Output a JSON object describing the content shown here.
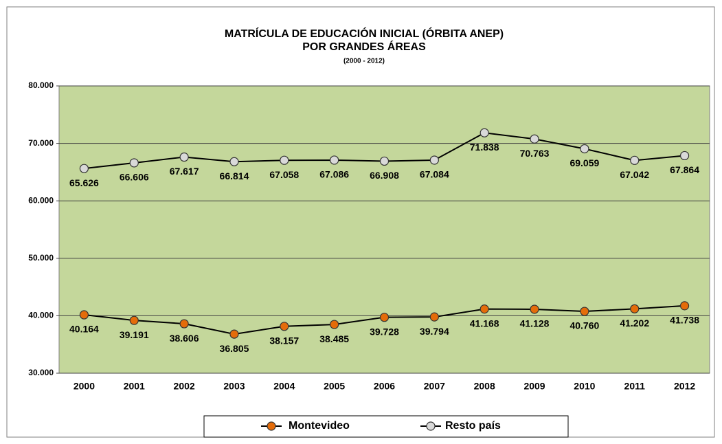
{
  "chart_data": {
    "type": "line",
    "title": [
      "MATRÍCULA DE EDUCACIÓN INICIAL (ÓRBITA ANEP)",
      "POR GRANDES ÁREAS"
    ],
    "subtitle": "(2000 - 2012)",
    "categories": [
      "2000",
      "2001",
      "2002",
      "2003",
      "2004",
      "2005",
      "2006",
      "2007",
      "2008",
      "2009",
      "2010",
      "2011",
      "2012"
    ],
    "series": [
      {
        "name": "Montevideo",
        "color": "#e46c0a",
        "values": [
          40164,
          39191,
          38606,
          36805,
          38157,
          38485,
          39728,
          39794,
          41168,
          41128,
          40760,
          41202,
          41738
        ],
        "value_labels": [
          "40.164",
          "39.191",
          "38.606",
          "36.805",
          "38.157",
          "38.485",
          "39.728",
          "39.794",
          "41.168",
          "41.128",
          "40.760",
          "41.202",
          "41.738"
        ]
      },
      {
        "name": "Resto país",
        "color": "#d9d9d9",
        "values": [
          65626,
          66606,
          67617,
          66814,
          67058,
          67086,
          66908,
          67084,
          71838,
          70763,
          69059,
          67042,
          67864
        ],
        "value_labels": [
          "65.626",
          "66.606",
          "67.617",
          "66.814",
          "67.058",
          "67.086",
          "66.908",
          "67.084",
          "71.838",
          "70.763",
          "69.059",
          "67.042",
          "67.864"
        ]
      }
    ],
    "ylim": [
      30000,
      80000
    ],
    "yticks": [
      {
        "value": 30000,
        "label": "30.000"
      },
      {
        "value": 40000,
        "label": "40.000"
      },
      {
        "value": 50000,
        "label": "50.000"
      },
      {
        "value": 60000,
        "label": "60.000"
      },
      {
        "value": 70000,
        "label": "70.000"
      },
      {
        "value": 80000,
        "label": "80.000"
      }
    ],
    "grid": true,
    "legend": "bottom",
    "plot_background": "#c4d79b"
  }
}
